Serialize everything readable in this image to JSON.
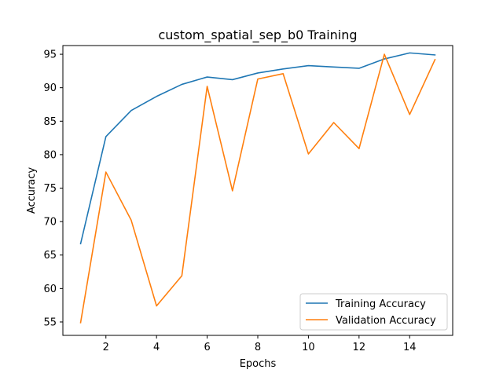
{
  "chart_data": {
    "type": "line",
    "title": "custom_spatial_sep_b0 Training",
    "xlabel": "Epochs",
    "ylabel": "Accuracy",
    "xlim": [
      0.3,
      15.7
    ],
    "ylim": [
      53.0,
      96.3
    ],
    "xticks": [
      2,
      4,
      6,
      8,
      10,
      12,
      14
    ],
    "yticks": [
      55,
      60,
      65,
      70,
      75,
      80,
      85,
      90,
      95
    ],
    "grid": false,
    "legend_position": "lower-right",
    "x": [
      1,
      2,
      3,
      4,
      5,
      6,
      7,
      8,
      9,
      10,
      11,
      12,
      13,
      14,
      15
    ],
    "series": [
      {
        "name": "Training Accuracy",
        "color": "#1f77b4",
        "values": [
          66.7,
          82.7,
          86.6,
          88.7,
          90.5,
          91.6,
          91.2,
          92.2,
          92.8,
          93.3,
          93.1,
          92.9,
          94.3,
          95.2,
          94.9
        ]
      },
      {
        "name": "Validation Accuracy",
        "color": "#ff7f0e",
        "values": [
          54.9,
          77.4,
          70.2,
          57.4,
          61.9,
          90.2,
          74.6,
          91.3,
          92.1,
          80.1,
          84.8,
          80.9,
          95.0,
          86.0,
          94.2
        ]
      }
    ]
  }
}
